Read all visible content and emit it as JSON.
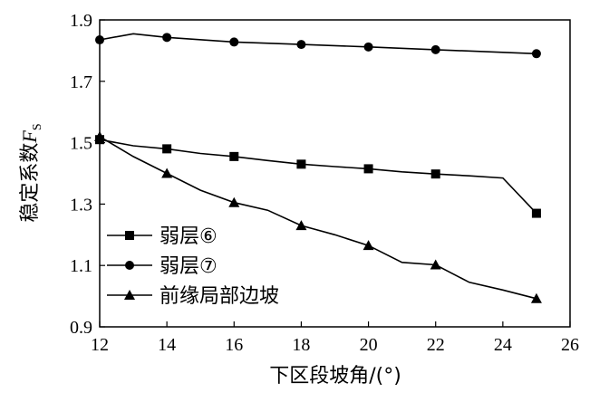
{
  "chart_data": {
    "type": "line",
    "xlabel": "下区段坡角/(°)",
    "ylabel_main": "稳定系数",
    "ylabel_var": "F",
    "ylabel_sub": "S",
    "xlim": [
      12,
      26
    ],
    "ylim": [
      0.9,
      1.9
    ],
    "xticks": [
      12,
      14,
      16,
      18,
      20,
      22,
      24,
      26
    ],
    "yticks": [
      0.9,
      1.1,
      1.3,
      1.5,
      1.7,
      1.9
    ],
    "ytick_labels": [
      "0.9",
      "1.1",
      "1.3",
      "1.5",
      "1.7",
      "1.9"
    ],
    "legend_position": "bottom-left",
    "series": [
      {
        "name": "弱层⑥",
        "marker": "square",
        "points": [
          [
            12,
            1.51
          ],
          [
            13,
            1.49
          ],
          [
            14,
            1.48
          ],
          [
            15,
            1.465
          ],
          [
            16,
            1.455
          ],
          [
            17,
            1.442
          ],
          [
            18,
            1.43
          ],
          [
            19,
            1.422
          ],
          [
            20,
            1.415
          ],
          [
            21,
            1.405
          ],
          [
            22,
            1.398
          ],
          [
            23,
            1.392
          ],
          [
            24,
            1.385
          ],
          [
            25,
            1.27
          ]
        ],
        "marked_points": [
          [
            12,
            1.51
          ],
          [
            14,
            1.48
          ],
          [
            16,
            1.455
          ],
          [
            18,
            1.43
          ],
          [
            20,
            1.415
          ],
          [
            22,
            1.398
          ],
          [
            25,
            1.27
          ]
        ]
      },
      {
        "name": "弱层⑦",
        "marker": "circle",
        "points": [
          [
            12,
            1.835
          ],
          [
            13,
            1.855
          ],
          [
            14,
            1.843
          ],
          [
            16,
            1.828
          ],
          [
            18,
            1.82
          ],
          [
            20,
            1.812
          ],
          [
            22,
            1.803
          ],
          [
            25,
            1.79
          ]
        ],
        "marked_points": [
          [
            12,
            1.835
          ],
          [
            14,
            1.843
          ],
          [
            16,
            1.828
          ],
          [
            18,
            1.82
          ],
          [
            20,
            1.812
          ],
          [
            22,
            1.803
          ],
          [
            25,
            1.79
          ]
        ]
      },
      {
        "name": "前缘局部边坡",
        "marker": "triangle",
        "points": [
          [
            12,
            1.52
          ],
          [
            13,
            1.455
          ],
          [
            14,
            1.4
          ],
          [
            15,
            1.345
          ],
          [
            16,
            1.305
          ],
          [
            17,
            1.28
          ],
          [
            18,
            1.23
          ],
          [
            19,
            1.2
          ],
          [
            20,
            1.165
          ],
          [
            21,
            1.11
          ],
          [
            22,
            1.102
          ],
          [
            23,
            1.045
          ],
          [
            24,
            1.02
          ],
          [
            25,
            0.992
          ]
        ],
        "marked_points": [
          [
            12,
            1.52
          ],
          [
            14,
            1.4
          ],
          [
            16,
            1.305
          ],
          [
            18,
            1.23
          ],
          [
            20,
            1.165
          ],
          [
            22,
            1.102
          ],
          [
            25,
            0.992
          ]
        ]
      }
    ]
  }
}
